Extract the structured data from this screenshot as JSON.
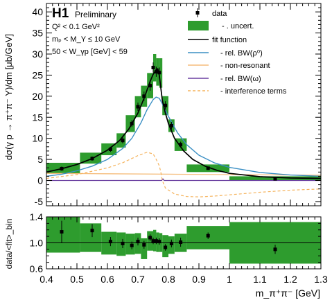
{
  "colors": {
    "uncert": "#2e9c2e",
    "bw_rho": "#3a8fc4",
    "nonres": "#f5bc7a",
    "bw_omega": "#6a3fa0",
    "interference": "#f5b35c",
    "fit": "#000000"
  },
  "header": {
    "brand": "H1",
    "tag": "Preliminary",
    "cut1": "Q² < 0.1 GeV²",
    "cut2": "mₚ < M_Y ≤ 10 GeV",
    "cut3": "50 < W_γp [GeV] < 59"
  },
  "legend": {
    "data": "data",
    "uncert": "- . uncert.",
    "fit": "fit function",
    "bw_rho": "- rel. BW(ρ⁰)",
    "nonres": "- non-resonant",
    "bw_omega": "- rel. BW(ω)",
    "interference": "- interference terms"
  },
  "chart_data": [
    {
      "type": "line",
      "ylabel": "dσ(γ p → π⁺π⁻ Y)/dm [μb/GeV]",
      "xlim": [
        0.4,
        1.3
      ],
      "ylim": [
        -6,
        42
      ],
      "yticks": [
        -5,
        0,
        5,
        10,
        15,
        20,
        25,
        30,
        35,
        40
      ],
      "grid": false,
      "legend_position": "top-right",
      "data_points": {
        "x": [
          0.45,
          0.55,
          0.61,
          0.65,
          0.68,
          0.7,
          0.72,
          0.74,
          0.75,
          0.76,
          0.77,
          0.79,
          0.81,
          0.84,
          0.93,
          1.15
        ],
        "y": [
          2.8,
          5.2,
          7.4,
          9.5,
          13.5,
          17.5,
          20.0,
          22.5,
          26.8,
          25.8,
          25.6,
          17.8,
          13.0,
          8.5,
          2.9,
          0.4
        ],
        "err": [
          0.5,
          0.5,
          0.6,
          0.7,
          0.8,
          1.0,
          1.1,
          1.2,
          1.2,
          1.2,
          1.2,
          1.0,
          0.9,
          0.7,
          0.4,
          0.3
        ]
      },
      "uncertainty_bands": [
        {
          "x0": 0.4,
          "x1": 0.51,
          "y0": 1.6,
          "y1": 4.2
        },
        {
          "x0": 0.51,
          "x1": 0.58,
          "y0": 4.0,
          "y1": 6.6
        },
        {
          "x0": 0.58,
          "x1": 0.63,
          "y0": 6.0,
          "y1": 8.8
        },
        {
          "x0": 0.63,
          "x1": 0.66,
          "y0": 7.8,
          "y1": 11.2
        },
        {
          "x0": 0.66,
          "x1": 0.69,
          "y0": 11.5,
          "y1": 15.5
        },
        {
          "x0": 0.69,
          "x1": 0.71,
          "y0": 15.0,
          "y1": 20.0
        },
        {
          "x0": 0.71,
          "x1": 0.73,
          "y0": 17.5,
          "y1": 22.5
        },
        {
          "x0": 0.73,
          "x1": 0.75,
          "y0": 19.5,
          "y1": 25.5
        },
        {
          "x0": 0.75,
          "x1": 0.76,
          "y0": 23.5,
          "y1": 30.0
        },
        {
          "x0": 0.76,
          "x1": 0.77,
          "y0": 22.5,
          "y1": 29.0
        },
        {
          "x0": 0.77,
          "x1": 0.78,
          "y0": 22.0,
          "y1": 29.0
        },
        {
          "x0": 0.78,
          "x1": 0.8,
          "y0": 15.5,
          "y1": 20.0
        },
        {
          "x0": 0.8,
          "x1": 0.82,
          "y0": 11.5,
          "y1": 14.5
        },
        {
          "x0": 0.82,
          "x1": 0.86,
          "y0": 7.0,
          "y1": 10.0
        },
        {
          "x0": 0.86,
          "x1": 1.0,
          "y0": 2.0,
          "y1": 3.8
        },
        {
          "x0": 1.0,
          "x1": 1.3,
          "y0": 0.0,
          "y1": 1.0
        }
      ],
      "curves": {
        "fit": {
          "x": [
            0.4,
            0.45,
            0.5,
            0.55,
            0.6,
            0.64,
            0.67,
            0.7,
            0.72,
            0.74,
            0.75,
            0.76,
            0.765,
            0.77,
            0.78,
            0.79,
            0.8,
            0.82,
            0.85,
            0.88,
            0.92,
            0.96,
            1.0,
            1.1,
            1.2,
            1.3
          ],
          "y": [
            2.0,
            2.8,
            3.8,
            5.2,
            7.2,
            9.5,
            12.2,
            16.0,
            19.5,
            23.5,
            25.2,
            26.3,
            26.5,
            25.0,
            19.0,
            16.0,
            13.5,
            10.0,
            7.0,
            5.0,
            3.4,
            2.4,
            1.7,
            0.9,
            0.6,
            0.5
          ]
        },
        "bw_rho": {
          "x": [
            0.4,
            0.45,
            0.5,
            0.55,
            0.6,
            0.65,
            0.68,
            0.71,
            0.73,
            0.75,
            0.76,
            0.77,
            0.78,
            0.8,
            0.83,
            0.86,
            0.9,
            0.95,
            1.0,
            1.1,
            1.2,
            1.3
          ],
          "y": [
            1.0,
            1.5,
            2.3,
            3.4,
            5.0,
            7.6,
            10.0,
            13.7,
            16.8,
            19.2,
            19.8,
            19.5,
            18.2,
            15.2,
            11.3,
            8.5,
            6.0,
            4.2,
            3.1,
            1.9,
            1.3,
            1.0
          ]
        },
        "nonres": {
          "x": [
            0.4,
            0.6,
            0.8,
            1.0,
            1.2,
            1.3
          ],
          "y": [
            1.7,
            1.6,
            1.5,
            1.4,
            1.3,
            1.25
          ]
        },
        "bw_omega": {
          "x": [
            0.4,
            0.77,
            0.778,
            0.782,
            0.786,
            0.8,
            1.3
          ],
          "y": [
            0.0,
            0.0,
            0.0,
            0.4,
            0.0,
            0.0,
            0.0
          ]
        },
        "interference": {
          "x": [
            0.4,
            0.5,
            0.6,
            0.65,
            0.7,
            0.73,
            0.75,
            0.76,
            0.77,
            0.775,
            0.78,
            0.79,
            0.82,
            0.86,
            0.9,
            0.95,
            1.0,
            1.1,
            1.2,
            1.3
          ],
          "y": [
            0.5,
            1.4,
            3.0,
            4.2,
            5.9,
            6.7,
            6.3,
            5.0,
            3.5,
            2.0,
            0.0,
            -1.8,
            -3.2,
            -3.8,
            -3.9,
            -3.7,
            -3.4,
            -2.8,
            -2.3,
            -2.0
          ]
        }
      }
    },
    {
      "type": "scatter",
      "xlabel": "m_π⁺π⁻ [GeV]",
      "ylabel": "data/<fit>_bin",
      "xlim": [
        0.4,
        1.3
      ],
      "ylim": [
        0.6,
        1.4
      ],
      "yticks": [
        0.6,
        1.0,
        1.4
      ],
      "xticks": [
        0.4,
        0.5,
        0.6,
        0.7,
        0.8,
        0.9,
        1.0,
        1.1,
        1.2,
        1.3
      ],
      "reference_line": 1.0,
      "uncertainty_bands": [
        {
          "x0": 0.4,
          "x1": 0.51,
          "y0": 0.85,
          "y1": 1.4
        },
        {
          "x0": 0.51,
          "x1": 0.58,
          "y0": 0.86,
          "y1": 1.3
        },
        {
          "x0": 0.58,
          "x1": 0.63,
          "y0": 0.82,
          "y1": 1.17
        },
        {
          "x0": 0.63,
          "x1": 0.66,
          "y0": 0.8,
          "y1": 1.16
        },
        {
          "x0": 0.66,
          "x1": 0.69,
          "y0": 0.82,
          "y1": 1.14
        },
        {
          "x0": 0.69,
          "x1": 0.71,
          "y0": 0.83,
          "y1": 1.15
        },
        {
          "x0": 0.71,
          "x1": 0.73,
          "y0": 0.75,
          "y1": 1.07
        },
        {
          "x0": 0.73,
          "x1": 0.75,
          "y0": 0.88,
          "y1": 1.18
        },
        {
          "x0": 0.75,
          "x1": 0.76,
          "y0": 0.87,
          "y1": 1.2
        },
        {
          "x0": 0.76,
          "x1": 0.77,
          "y0": 0.86,
          "y1": 1.16
        },
        {
          "x0": 0.77,
          "x1": 0.78,
          "y0": 0.86,
          "y1": 1.15
        },
        {
          "x0": 0.78,
          "x1": 0.8,
          "y0": 0.78,
          "y1": 1.12
        },
        {
          "x0": 0.8,
          "x1": 0.82,
          "y0": 0.83,
          "y1": 1.1
        },
        {
          "x0": 0.82,
          "x1": 0.86,
          "y0": 0.86,
          "y1": 1.14
        },
        {
          "x0": 0.86,
          "x1": 1.0,
          "y0": 0.9,
          "y1": 1.26
        },
        {
          "x0": 1.0,
          "x1": 1.3,
          "y0": 0.68,
          "y1": 1.32
        }
      ],
      "data_points": {
        "x": [
          0.45,
          0.55,
          0.61,
          0.65,
          0.68,
          0.7,
          0.72,
          0.74,
          0.75,
          0.76,
          0.77,
          0.79,
          0.81,
          0.84,
          0.93,
          1.15
        ],
        "y": [
          1.17,
          1.19,
          1.02,
          0.99,
          0.96,
          1.02,
          0.97,
          1.08,
          1.03,
          1.03,
          1.02,
          0.93,
          0.99,
          1.01,
          1.11,
          0.9
        ],
        "err": [
          0.17,
          0.1,
          0.07,
          0.07,
          0.06,
          0.06,
          0.06,
          0.05,
          0.05,
          0.05,
          0.05,
          0.05,
          0.06,
          0.07,
          0.05,
          0.07
        ]
      }
    }
  ],
  "axis_labels": {
    "main_ylabel": "dσ(γ p → π⁺π⁻ Y)/dm [μb/GeV]",
    "ratio_ylabel": "data/<fit>_bin",
    "xlabel": "m_π⁺π⁻ [GeV]"
  }
}
